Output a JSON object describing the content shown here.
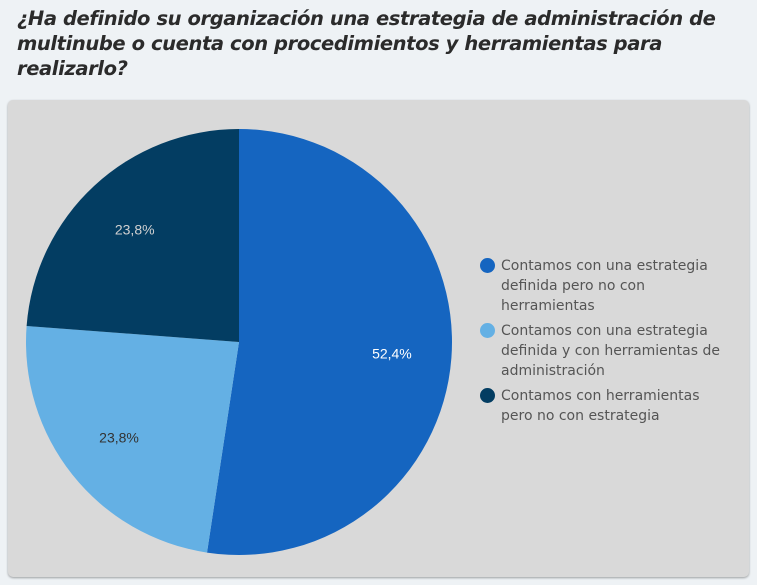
{
  "title": "¿Ha definido su organización una estrategia de administración de multinube o cuenta con procedimientos y herramientas para realizarlo?",
  "chart_data": {
    "type": "pie",
    "title": "¿Ha definido su organización una estrategia de administración de multinube o cuenta con procedimientos y herramientas para realizarlo?",
    "start_angle_deg": 0,
    "direction": "clockwise",
    "legend_position": "right",
    "slices": [
      {
        "label": "Contamos con una estrategia definida pero no con herramientas",
        "value": 52.4,
        "display": "52,4%",
        "color": "#1565c0",
        "label_color": "#ffffff"
      },
      {
        "label": "Contamos con una estrategia definida y con herramientas de administración",
        "value": 23.8,
        "display": "23,8%",
        "color": "#64b0e4",
        "label_color": "#333333"
      },
      {
        "label": "Contamos con herramientas pero no con estrategia",
        "value": 23.8,
        "display": "23,8%",
        "color": "#033d62",
        "label_color": "#d0d0d0"
      }
    ]
  }
}
